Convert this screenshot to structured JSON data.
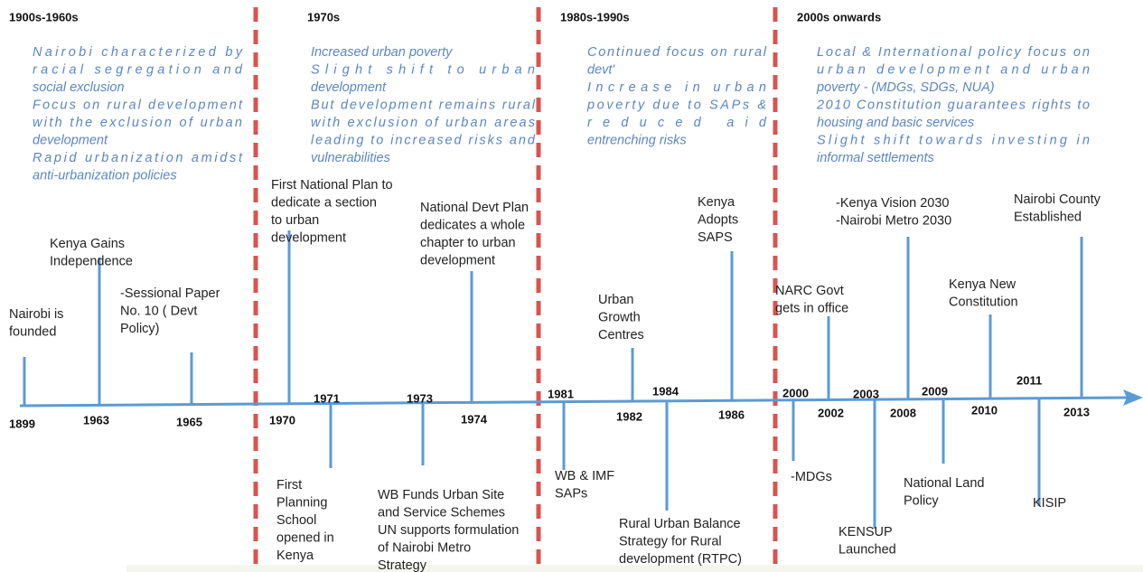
{
  "periods": [
    {
      "title": "1900s-1960s",
      "bullets": [
        [
          "Nairobi characterized by",
          "racial segregation and",
          "social exclusion"
        ],
        [
          "Focus on rural development",
          "with the exclusion of urban",
          "development"
        ],
        [
          "Rapid urbanization amidst",
          "anti-urbanization policies"
        ]
      ]
    },
    {
      "title": "1970s",
      "bullets": [
        [
          "Increased urban poverty"
        ],
        [
          "Slight shift to urban",
          "development"
        ],
        [
          "But development remains rural",
          "with exclusion of urban areas",
          "leading to increased risks and",
          "vulnerabilities"
        ]
      ]
    },
    {
      "title": "1980s-1990s",
      "bullets": [
        [
          "Continued focus on rural",
          "devt'"
        ],
        [
          "Increase in urban",
          "poverty due to SAPs &",
          "reduced aid",
          "entrenching risks"
        ]
      ]
    },
    {
      "title": "2000s onwards",
      "bullets": [
        [
          "Local & International policy focus on",
          "urban development and urban",
          "poverty - (MDGs, SDGs, NUA)"
        ],
        [
          "2010 Constitution guarantees rights to",
          "housing and basic services"
        ],
        [
          "Slight shift towards investing in",
          "informal settlements"
        ]
      ]
    }
  ],
  "events": [
    {
      "year": "1899",
      "label": [
        "Nairobi is",
        "founded"
      ]
    },
    {
      "year": "1963",
      "label": [
        "Kenya Gains",
        "Independence"
      ]
    },
    {
      "year": "1965",
      "label": [
        "-Sessional Paper",
        "No. 10 ( Devt",
        "Policy)"
      ]
    },
    {
      "year": "1970",
      "label": [
        "First National Plan to",
        "dedicate a section",
        "to urban",
        "development"
      ]
    },
    {
      "year": "1971",
      "label": [
        "First",
        "Planning",
        "School",
        "opened in",
        "Kenya"
      ]
    },
    {
      "year": "1973",
      "label": [
        "WB Funds Urban  Site",
        "and Service Schemes",
        "UN supports formulation",
        "of Nairobi Metro",
        "Strategy"
      ]
    },
    {
      "year": "1974",
      "label": [
        "National Devt Plan",
        "dedicates a whole",
        "chapter to urban",
        "development"
      ]
    },
    {
      "year": "1981",
      "label": [
        "WB & IMF",
        "SAPs"
      ]
    },
    {
      "year": "1982",
      "label": [
        "Urban",
        "Growth",
        "Centres"
      ]
    },
    {
      "year": "1984",
      "label": [
        "Rural Urban Balance",
        "Strategy for Rural",
        "development (RTPC)"
      ]
    },
    {
      "year": "1986",
      "label": [
        "Kenya",
        "Adopts",
        "SAPS"
      ]
    },
    {
      "year": "2000",
      "label": [
        "-MDGs"
      ]
    },
    {
      "year": "2002",
      "label": [
        "NARC Govt",
        "gets in office"
      ]
    },
    {
      "year": "2003",
      "label": [
        "KENSUP",
        "Launched"
      ]
    },
    {
      "year": "2008",
      "label": [
        "-Kenya Vision 2030",
        "-Nairobi Metro 2030"
      ]
    },
    {
      "year": "2009",
      "label": [
        "National Land",
        "Policy"
      ]
    },
    {
      "year": "2010",
      "label": [
        "Kenya New",
        "Constitution"
      ]
    },
    {
      "year": "2011",
      "label": [
        "KISIP"
      ]
    },
    {
      "year": "2013",
      "label": [
        "Nairobi County",
        "Established"
      ]
    }
  ]
}
